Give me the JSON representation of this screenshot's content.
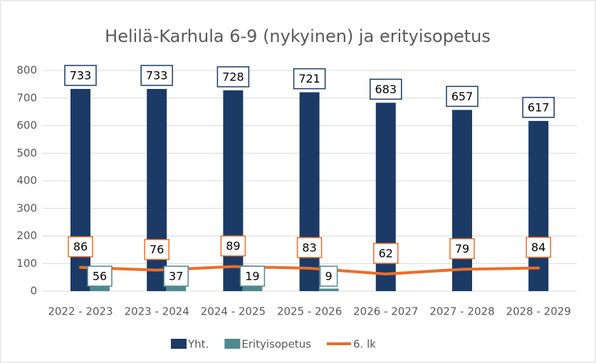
{
  "chart_data": {
    "type": "bar",
    "title": "Helilä-Karhula 6-9 (nykyinen) ja erityisopetus",
    "categories": [
      "2022 - 2023",
      "2023 - 2024",
      "2024 - 2025",
      "2025 - 2026",
      "2026 - 2027",
      "2027 - 2028",
      "2028 - 2029"
    ],
    "series": [
      {
        "name": "Yht.",
        "kind": "bar",
        "color": "#1b3a66",
        "values": [
          733,
          733,
          728,
          721,
          683,
          657,
          617
        ]
      },
      {
        "name": "Erityisopetus",
        "kind": "bar",
        "color": "#4e8a8f",
        "values": [
          56,
          37,
          19,
          9,
          null,
          null,
          null
        ]
      },
      {
        "name": "6. lk",
        "kind": "line",
        "color": "#ed6d27",
        "values": [
          86,
          76,
          89,
          83,
          62,
          79,
          84
        ]
      }
    ],
    "ylim": [
      0,
      800
    ],
    "yticks": [
      0,
      100,
      200,
      300,
      400,
      500,
      600,
      700,
      800
    ],
    "grid": true,
    "legend": "bottom"
  }
}
